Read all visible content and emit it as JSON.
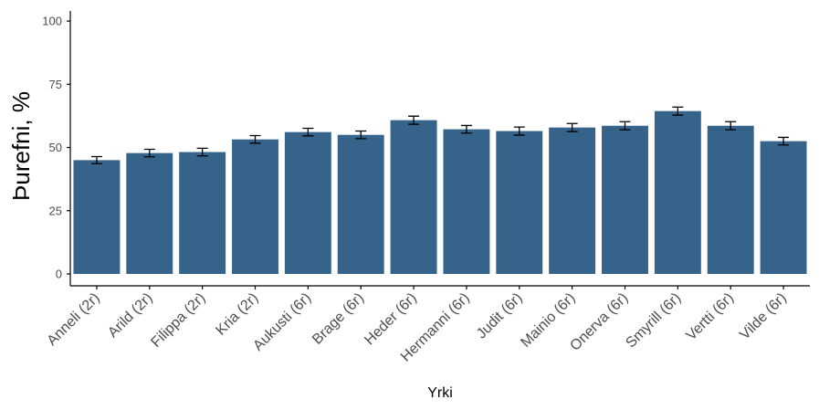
{
  "chart_data": {
    "type": "bar",
    "xlabel": "Yrki",
    "ylabel": "Þurefni, %",
    "categories": [
      "Anneli (2r)",
      "Arild (2r)",
      "Filippa (2r)",
      "Kria (2r)",
      "Aukusti (6r)",
      "Brage (6r)",
      "Heder (6r)",
      "Hermanni (6r)",
      "Judit (6r)",
      "Mainio (6r)",
      "Onerva (6r)",
      "Smyrill (6r)",
      "Vertti (6r)",
      "Vilde (6r)"
    ],
    "values": [
      45.0,
      47.8,
      48.2,
      53.2,
      56.1,
      55.0,
      60.8,
      57.2,
      56.5,
      57.9,
      58.6,
      64.4,
      58.6,
      52.5
    ],
    "errors": [
      1.4,
      1.5,
      1.5,
      1.5,
      1.5,
      1.5,
      1.6,
      1.5,
      1.6,
      1.6,
      1.6,
      1.6,
      1.6,
      1.5
    ],
    "color": "#35638a",
    "ylim": [
      -4.7,
      104
    ],
    "yticks": [
      0,
      25,
      50,
      75,
      100
    ]
  }
}
